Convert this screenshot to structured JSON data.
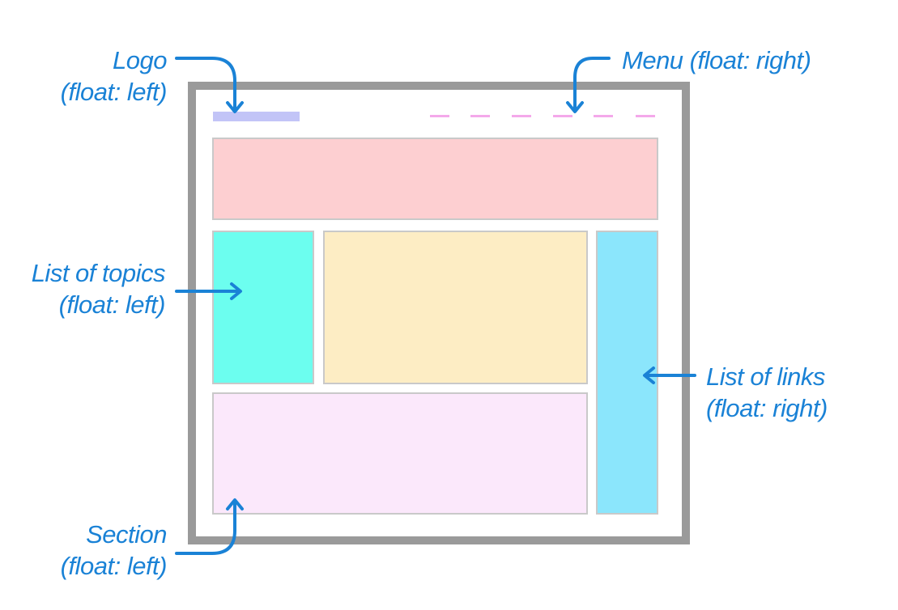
{
  "labels": {
    "logo": {
      "line1": "Logo",
      "line2": "(float: left)"
    },
    "menu": {
      "line1": "Menu (float: right)"
    },
    "topics": {
      "line1": "List of topics",
      "line2": "(float: left)"
    },
    "links": {
      "line1": "List of links",
      "line2": "(float: right)"
    },
    "section": {
      "line1": "Section",
      "line2": "(float: left)"
    }
  },
  "colors": {
    "annotation": "#1a82d6",
    "frame": "#9a9a9a",
    "logo": "#c2c4f7",
    "menu": "#f4a9ea",
    "header": "#fdcfd1",
    "topics": "#6cfeef",
    "content": "#fdedc4",
    "links": "#8be6fc",
    "section": "#fbe8fb"
  },
  "menu_item_count": 6
}
